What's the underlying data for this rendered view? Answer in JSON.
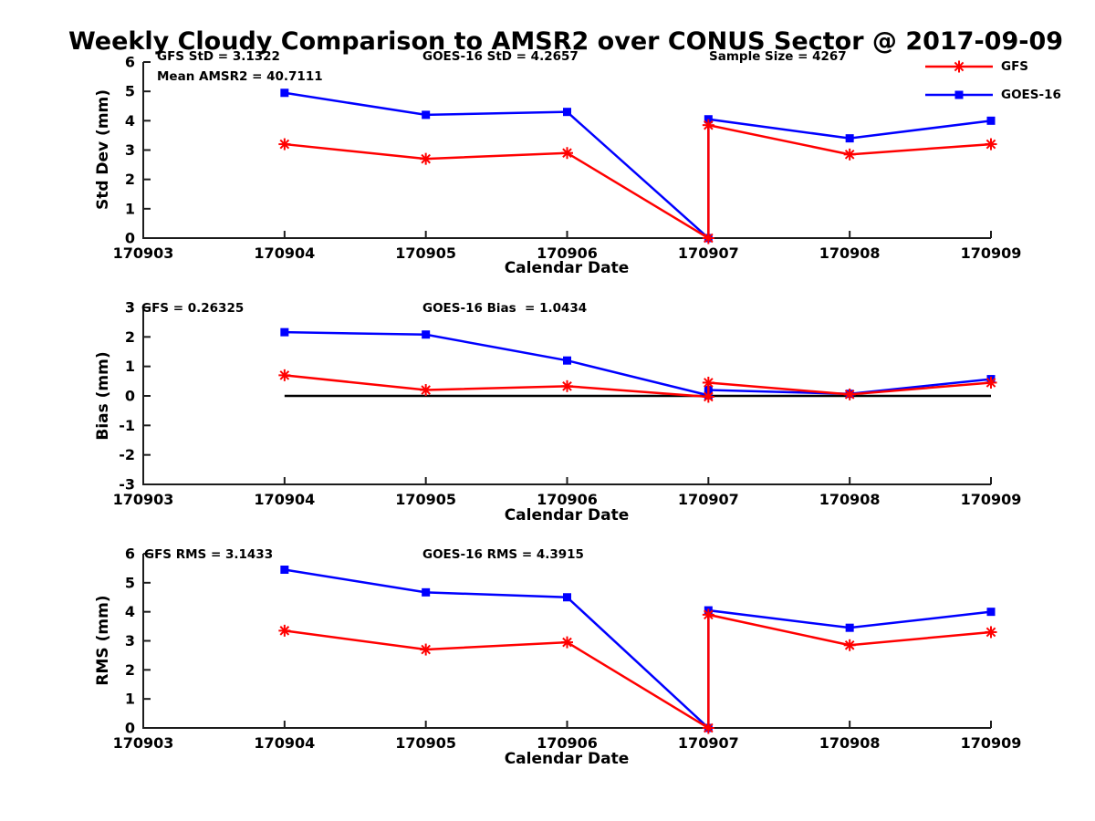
{
  "title": "Weekly Cloudy Comparison to AMSR2 over CONUS Sector @ 2017-09-09",
  "colors": {
    "gfs": "#ff0000",
    "goes16": "#0000ff",
    "axis": "#1c1c1c",
    "text": "#000000",
    "zero_line": "#000000",
    "background": "#ffffff"
  },
  "legend": {
    "position": "top-right-outside",
    "items": [
      {
        "label": "GFS",
        "color": "#ff0000",
        "marker": "asterisk"
      },
      {
        "label": "GOES-16",
        "color": "#0000ff",
        "marker": "square"
      }
    ]
  },
  "chart_data": [
    {
      "type": "line",
      "xlabel": "Calendar Date",
      "ylabel": "Std Dev (mm)",
      "xlim": [
        170903,
        170909
      ],
      "ylim": [
        0,
        6
      ],
      "xticks": [
        170903,
        170904,
        170905,
        170906,
        170907,
        170908,
        170909
      ],
      "xticklabels": [
        "170903",
        "170904",
        "170905",
        "170906",
        "170907",
        "170908",
        "170909"
      ],
      "yticks": [
        0,
        1,
        2,
        3,
        4,
        5,
        6
      ],
      "yticklabels": [
        "0",
        "1",
        "2",
        "3",
        "4",
        "5",
        "6"
      ],
      "grid": false,
      "zero_line": false,
      "annotations": [
        {
          "text": "GFS StD = 3.1322"
        },
        {
          "text": "Mean AMSR2 = 40.7111"
        },
        {
          "text": "GOES-16 StD = 4.2657"
        },
        {
          "text": "Sample Size = 4267"
        }
      ],
      "x": [
        170904,
        170905,
        170906,
        170907,
        170907,
        170908,
        170909
      ],
      "series": [
        {
          "name": "GOES-16",
          "color": "#0000ff",
          "marker": "square",
          "values": [
            4.95,
            4.2,
            4.3,
            0,
            4.05,
            3.4,
            4.0
          ]
        },
        {
          "name": "GFS",
          "color": "#ff0000",
          "marker": "asterisk",
          "values": [
            3.2,
            2.7,
            2.9,
            0,
            3.85,
            2.85,
            3.2
          ]
        }
      ]
    },
    {
      "type": "line",
      "xlabel": "Calendar Date",
      "ylabel": "Bias (mm)",
      "xlim": [
        170903,
        170909
      ],
      "ylim": [
        -3,
        3
      ],
      "xticks": [
        170903,
        170904,
        170905,
        170906,
        170907,
        170908,
        170909
      ],
      "xticklabels": [
        "170903",
        "170904",
        "170905",
        "170906",
        "170907",
        "170908",
        "170909"
      ],
      "yticks": [
        -3,
        -2,
        -1,
        0,
        1,
        2,
        3
      ],
      "yticklabels": [
        "-3",
        "-2",
        "-1",
        "0",
        "1",
        "2",
        "3"
      ],
      "grid": false,
      "zero_line": true,
      "zero_line_x": [
        170904,
        170909
      ],
      "annotations": [
        {
          "text": "GFS = 0.26325"
        },
        {
          "text": "GOES-16 Bias  = 1.0434"
        }
      ],
      "x": [
        170904,
        170905,
        170906,
        170907,
        170907,
        170908,
        170909
      ],
      "series": [
        {
          "name": "GOES-16",
          "color": "#0000ff",
          "marker": "square",
          "values": [
            2.16,
            2.08,
            1.2,
            0.02,
            0.2,
            0.07,
            0.57
          ]
        },
        {
          "name": "GFS",
          "color": "#ff0000",
          "marker": "asterisk",
          "values": [
            0.7,
            0.2,
            0.33,
            -0.03,
            0.45,
            0.05,
            0.45
          ]
        }
      ]
    },
    {
      "type": "line",
      "xlabel": "Calendar Date",
      "ylabel": "RMS (mm)",
      "xlim": [
        170903,
        170909
      ],
      "ylim": [
        0,
        6
      ],
      "xticks": [
        170903,
        170904,
        170905,
        170906,
        170907,
        170908,
        170909
      ],
      "xticklabels": [
        "170903",
        "170904",
        "170905",
        "170906",
        "170907",
        "170908",
        "170909"
      ],
      "yticks": [
        0,
        1,
        2,
        3,
        4,
        5,
        6
      ],
      "yticklabels": [
        "0",
        "1",
        "2",
        "3",
        "4",
        "5",
        "6"
      ],
      "grid": false,
      "zero_line": false,
      "annotations": [
        {
          "text": "GFS RMS = 3.1433"
        },
        {
          "text": "GOES-16 RMS = 4.3915"
        }
      ],
      "x": [
        170904,
        170905,
        170906,
        170907,
        170907,
        170908,
        170909
      ],
      "series": [
        {
          "name": "GOES-16",
          "color": "#0000ff",
          "marker": "square",
          "values": [
            5.45,
            4.67,
            4.5,
            0,
            4.05,
            3.45,
            4.0
          ]
        },
        {
          "name": "GFS",
          "color": "#ff0000",
          "marker": "asterisk",
          "values": [
            3.35,
            2.7,
            2.95,
            0,
            3.9,
            2.85,
            3.3
          ]
        }
      ]
    }
  ]
}
